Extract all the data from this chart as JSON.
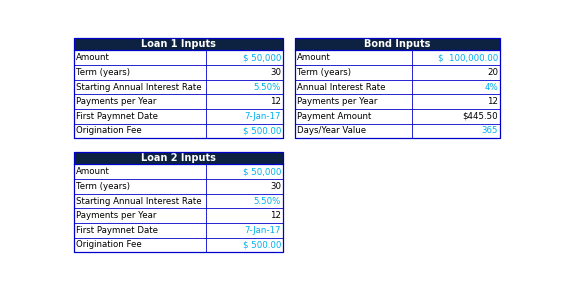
{
  "loan1": {
    "title": "Loan 1 Inputs",
    "rows": [
      [
        "Amount",
        "$ 50,000"
      ],
      [
        "Term (years)",
        "30"
      ],
      [
        "Starting Annual Interest Rate",
        "5.50%"
      ],
      [
        "Payments per Year",
        "12"
      ],
      [
        "First Paymnet Date",
        "7-Jan-17"
      ],
      [
        "Origination Fee",
        "$ 500.00"
      ]
    ],
    "cyan_rows": [
      0,
      2,
      4,
      5
    ],
    "blue_rows": [
      1,
      3
    ]
  },
  "loan2": {
    "title": "Loan 2 Inputs",
    "rows": [
      [
        "Amount",
        "$ 50,000"
      ],
      [
        "Term (years)",
        "30"
      ],
      [
        "Starting Annual Interest Rate",
        "5.50%"
      ],
      [
        "Payments per Year",
        "12"
      ],
      [
        "First Paymnet Date",
        "7-Jan-17"
      ],
      [
        "Origination Fee",
        "$ 500.00"
      ]
    ],
    "cyan_rows": [
      0,
      2,
      4,
      5
    ],
    "blue_rows": [
      1,
      3
    ]
  },
  "bond": {
    "title": "Bond Inputs",
    "rows": [
      [
        "Amount",
        "$  100,000.00"
      ],
      [
        "Term (years)",
        "20"
      ],
      [
        "Annual Interest Rate",
        "4%"
      ],
      [
        "Payments per Year",
        "12"
      ],
      [
        "Payment Amount",
        "$445.50"
      ],
      [
        "Days/Year Value",
        "365"
      ]
    ],
    "cyan_rows": [
      0,
      2,
      5
    ],
    "blue_rows": [
      1,
      3,
      4
    ]
  },
  "header_bg": "#0d2240",
  "header_text": "#ffffff",
  "border_color": "#0000cd",
  "text_color_black": "#000000",
  "text_color_cyan": "#00b0f0"
}
